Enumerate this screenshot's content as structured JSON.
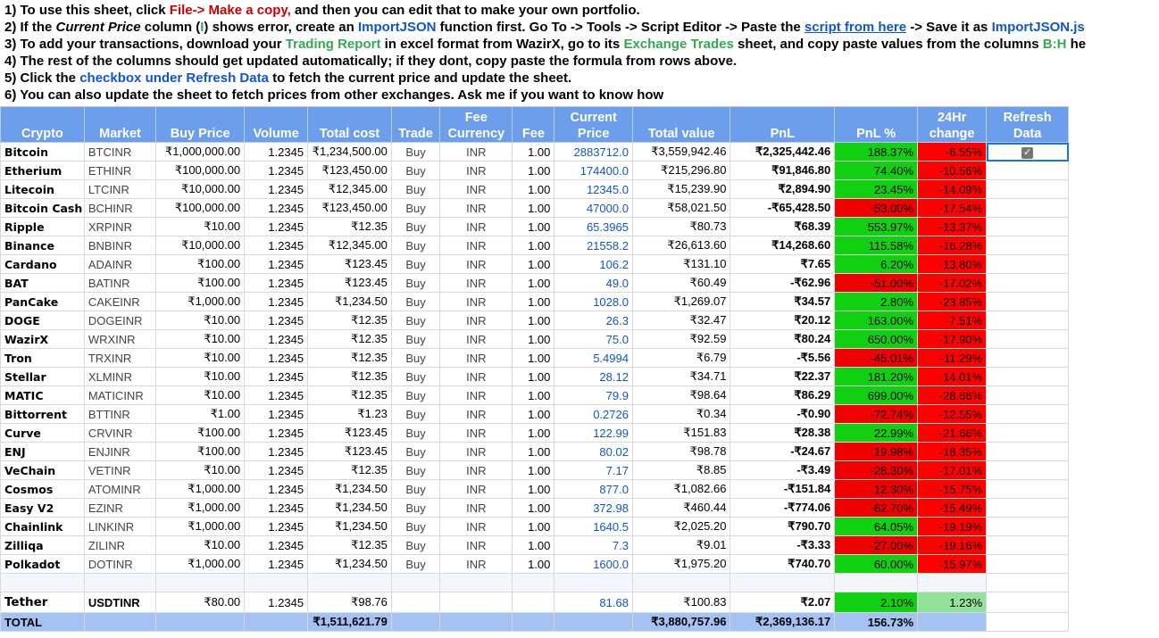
{
  "notes": {
    "l1": {
      "a": "1) To use this sheet, click ",
      "b": "File-> Make a copy,",
      "c": " and then you can edit that to make your own portfolio."
    },
    "l2": {
      "a": "2) If the ",
      "b": "Current Price",
      "c": " column (",
      "d": "I",
      "e": ") shows error, create an ",
      "f": "ImportJSON",
      "g": " function first. Go To -> Tools -> Script Editor -> Paste the ",
      "h": "script from here",
      "i": " -> Save it as ",
      "j": "ImportJSON.js"
    },
    "l3": {
      "a": "3) To add your transactions, download your ",
      "b": "Trading Report",
      "c": " in excel format from WazirX, go to its ",
      "d": "Exchange Trades",
      "e": " sheet, and copy paste values from the columns ",
      "f": "B:H",
      "g": " he"
    },
    "l4": "4) The rest of the columns should get updated automatically; if they dont, copy paste the formula from rows above.",
    "l5": {
      "a": "5) Click the ",
      "b": "checkbox under Refresh Data",
      "c": " to fetch the current price and update the sheet."
    },
    "l6": "6) You can also update the sheet to fetch prices from other exchanges. Ask me if you want to know how"
  },
  "headers": {
    "crypto": "Crypto",
    "market": "Market",
    "buy_price": "Buy Price",
    "volume": "Volume",
    "total_cost": "Total cost",
    "trade": "Trade",
    "fee_currency_1": "Fee",
    "fee_currency_2": "Currency",
    "fee": "Fee",
    "current_price_1": "Current",
    "current_price_2": "Price",
    "total_value": "Total value",
    "pnl": "PnL",
    "pnl_pct": "PnL %",
    "change_1": "24Hr",
    "change_2": "change",
    "refresh_1": "Refresh",
    "refresh_2": "Data"
  },
  "rows": [
    {
      "crypto": "Bitcoin",
      "market": "BTCINR",
      "buy": "₹1,000,000.00",
      "vol": "1.2345",
      "cost": "₹1,234,500.00",
      "trade": "Buy",
      "cur": "INR",
      "fee": "1.00",
      "price": "2883712.0",
      "value": "₹3,559,942.46",
      "pnl": "₹2,325,442.46",
      "pct": "188.37%",
      "chg": "-6.55%",
      "up": true
    },
    {
      "crypto": "Etherium",
      "market": "ETHINR",
      "buy": "₹100,000.00",
      "vol": "1.2345",
      "cost": "₹123,450.00",
      "trade": "Buy",
      "cur": "INR",
      "fee": "1.00",
      "price": "174400.0",
      "value": "₹215,296.80",
      "pnl": "₹91,846.80",
      "pct": "74.40%",
      "chg": "-10.56%",
      "up": true
    },
    {
      "crypto": "Litecoin",
      "market": "LTCINR",
      "buy": "₹10,000.00",
      "vol": "1.2345",
      "cost": "₹12,345.00",
      "trade": "Buy",
      "cur": "INR",
      "fee": "1.00",
      "price": "12345.0",
      "value": "₹15,239.90",
      "pnl": "₹2,894.90",
      "pct": "23.45%",
      "chg": "-14.09%",
      "up": true
    },
    {
      "crypto": "Bitcoin Cash",
      "market": "BCHINR",
      "buy": "₹100,000.00",
      "vol": "1.2345",
      "cost": "₹123,450.00",
      "trade": "Buy",
      "cur": "INR",
      "fee": "1.00",
      "price": "47000.0",
      "value": "₹58,021.50",
      "pnl": "-₹65,428.50",
      "pct": "-53.00%",
      "chg": "-17.54%",
      "up": false
    },
    {
      "crypto": "Ripple",
      "market": "XRPINR",
      "buy": "₹10.00",
      "vol": "1.2345",
      "cost": "₹12.35",
      "trade": "Buy",
      "cur": "INR",
      "fee": "1.00",
      "price": "65.3965",
      "value": "₹80.73",
      "pnl": "₹68.39",
      "pct": "553.97%",
      "chg": "-13.37%",
      "up": true
    },
    {
      "crypto": "Binance",
      "market": "BNBINR",
      "buy": "₹10,000.00",
      "vol": "1.2345",
      "cost": "₹12,345.00",
      "trade": "Buy",
      "cur": "INR",
      "fee": "1.00",
      "price": "21558.2",
      "value": "₹26,613.60",
      "pnl": "₹14,268.60",
      "pct": "115.58%",
      "chg": "-16.28%",
      "up": true
    },
    {
      "crypto": "Cardano",
      "market": "ADAINR",
      "buy": "₹100.00",
      "vol": "1.2345",
      "cost": "₹123.45",
      "trade": "Buy",
      "cur": "INR",
      "fee": "1.00",
      "price": "106.2",
      "value": "₹131.10",
      "pnl": "₹7.65",
      "pct": "6.20%",
      "chg": "-13.80%",
      "up": true
    },
    {
      "crypto": "BAT",
      "market": "BATINR",
      "buy": "₹100.00",
      "vol": "1.2345",
      "cost": "₹123.45",
      "trade": "Buy",
      "cur": "INR",
      "fee": "1.00",
      "price": "49.0",
      "value": "₹60.49",
      "pnl": "-₹62.96",
      "pct": "-51.00%",
      "chg": "-17.02%",
      "up": false
    },
    {
      "crypto": "PanCake",
      "market": "CAKEINR",
      "buy": "₹1,000.00",
      "vol": "1.2345",
      "cost": "₹1,234.50",
      "trade": "Buy",
      "cur": "INR",
      "fee": "1.00",
      "price": "1028.0",
      "value": "₹1,269.07",
      "pnl": "₹34.57",
      "pct": "2.80%",
      "chg": "-23.85%",
      "up": true
    },
    {
      "crypto": "DOGE",
      "market": "DOGEINR",
      "buy": "₹10.00",
      "vol": "1.2345",
      "cost": "₹12.35",
      "trade": "Buy",
      "cur": "INR",
      "fee": "1.00",
      "price": "26.3",
      "value": "₹32.47",
      "pnl": "₹20.12",
      "pct": "163.00%",
      "chg": "-7.51%",
      "up": true
    },
    {
      "crypto": "WazirX",
      "market": "WRXINR",
      "buy": "₹10.00",
      "vol": "1.2345",
      "cost": "₹12.35",
      "trade": "Buy",
      "cur": "INR",
      "fee": "1.00",
      "price": "75.0",
      "value": "₹92.59",
      "pnl": "₹80.24",
      "pct": "650.00%",
      "chg": "-17.90%",
      "up": true
    },
    {
      "crypto": "Tron",
      "market": "TRXINR",
      "buy": "₹10.00",
      "vol": "1.2345",
      "cost": "₹12.35",
      "trade": "Buy",
      "cur": "INR",
      "fee": "1.00",
      "price": "5.4994",
      "value": "₹6.79",
      "pnl": "-₹5.56",
      "pct": "-45.01%",
      "chg": "-11.29%",
      "up": false
    },
    {
      "crypto": "Stellar",
      "market": "XLMINR",
      "buy": "₹10.00",
      "vol": "1.2345",
      "cost": "₹12.35",
      "trade": "Buy",
      "cur": "INR",
      "fee": "1.00",
      "price": "28.12",
      "value": "₹34.71",
      "pnl": "₹22.37",
      "pct": "181.20%",
      "chg": "-14.01%",
      "up": true
    },
    {
      "crypto": "MATIC",
      "market": "MATICINR",
      "buy": "₹10.00",
      "vol": "1.2345",
      "cost": "₹12.35",
      "trade": "Buy",
      "cur": "INR",
      "fee": "1.00",
      "price": "79.9",
      "value": "₹98.64",
      "pnl": "₹86.29",
      "pct": "699.00%",
      "chg": "-28.66%",
      "up": true
    },
    {
      "crypto": "Bittorrent",
      "market": "BTTINR",
      "buy": "₹1.00",
      "vol": "1.2345",
      "cost": "₹1.23",
      "trade": "Buy",
      "cur": "INR",
      "fee": "1.00",
      "price": "0.2726",
      "value": "₹0.34",
      "pnl": "-₹0.90",
      "pct": "-72.74%",
      "chg": "-12.55%",
      "up": false
    },
    {
      "crypto": "Curve",
      "market": "CRVINR",
      "buy": "₹100.00",
      "vol": "1.2345",
      "cost": "₹123.45",
      "trade": "Buy",
      "cur": "INR",
      "fee": "1.00",
      "price": "122.99",
      "value": "₹151.83",
      "pnl": "₹28.38",
      "pct": "22.99%",
      "chg": "-21.66%",
      "up": true
    },
    {
      "crypto": "ENJ",
      "market": "ENJINR",
      "buy": "₹100.00",
      "vol": "1.2345",
      "cost": "₹123.45",
      "trade": "Buy",
      "cur": "INR",
      "fee": "1.00",
      "price": "80.02",
      "value": "₹98.78",
      "pnl": "-₹24.67",
      "pct": "-19.98%",
      "chg": "-18.35%",
      "up": false
    },
    {
      "crypto": "VeChain",
      "market": "VETINR",
      "buy": "₹10.00",
      "vol": "1.2345",
      "cost": "₹12.35",
      "trade": "Buy",
      "cur": "INR",
      "fee": "1.00",
      "price": "7.17",
      "value": "₹8.85",
      "pnl": "-₹3.49",
      "pct": "-28.30%",
      "chg": "-17.01%",
      "up": false
    },
    {
      "crypto": "Cosmos",
      "market": "ATOMINR",
      "buy": "₹1,000.00",
      "vol": "1.2345",
      "cost": "₹1,234.50",
      "trade": "Buy",
      "cur": "INR",
      "fee": "1.00",
      "price": "877.0",
      "value": "₹1,082.66",
      "pnl": "-₹151.84",
      "pct": "-12.30%",
      "chg": "-15.75%",
      "up": false
    },
    {
      "crypto": "Easy V2",
      "market": "EZINR",
      "buy": "₹1,000.00",
      "vol": "1.2345",
      "cost": "₹1,234.50",
      "trade": "Buy",
      "cur": "INR",
      "fee": "1.00",
      "price": "372.98",
      "value": "₹460.44",
      "pnl": "-₹774.06",
      "pct": "-62.70%",
      "chg": "-15.49%",
      "up": false
    },
    {
      "crypto": "Chainlink",
      "market": "LINKINR",
      "buy": "₹1,000.00",
      "vol": "1.2345",
      "cost": "₹1,234.50",
      "trade": "Buy",
      "cur": "INR",
      "fee": "1.00",
      "price": "1640.5",
      "value": "₹2,025.20",
      "pnl": "₹790.70",
      "pct": "64.05%",
      "chg": "-19.19%",
      "up": true
    },
    {
      "crypto": "Zilliqa",
      "market": "ZILINR",
      "buy": "₹10.00",
      "vol": "1.2345",
      "cost": "₹12.35",
      "trade": "Buy",
      "cur": "INR",
      "fee": "1.00",
      "price": "7.3",
      "value": "₹9.01",
      "pnl": "-₹3.33",
      "pct": "-27.00%",
      "chg": "-19.16%",
      "up": false
    },
    {
      "crypto": "Polkadot",
      "market": "DOTINR",
      "buy": "₹1,000.00",
      "vol": "1.2345",
      "cost": "₹1,234.50",
      "trade": "Buy",
      "cur": "INR",
      "fee": "1.00",
      "price": "1600.0",
      "value": "₹1,975.20",
      "pnl": "₹740.70",
      "pct": "60.00%",
      "chg": "-15.97%",
      "up": true
    }
  ],
  "tether": {
    "crypto": "Tether",
    "market": "USDTINR",
    "buy": "₹80.00",
    "vol": "1.2345",
    "cost": "₹98.76",
    "price": "81.68",
    "value": "₹100.83",
    "pnl": "₹2.07",
    "pct": "2.10%",
    "chg": "1.23%"
  },
  "total": {
    "label": "TOTAL",
    "cost": "₹1,511,621.79",
    "value": "₹3,880,757.96",
    "pnl": "₹2,369,136.17",
    "pct": "156.73%"
  },
  "refresh_checked": true,
  "colors": {
    "header": "#6d9eeb",
    "positive": "#11d011",
    "negative": "#f00000",
    "total_row": "#a4c2f4"
  }
}
